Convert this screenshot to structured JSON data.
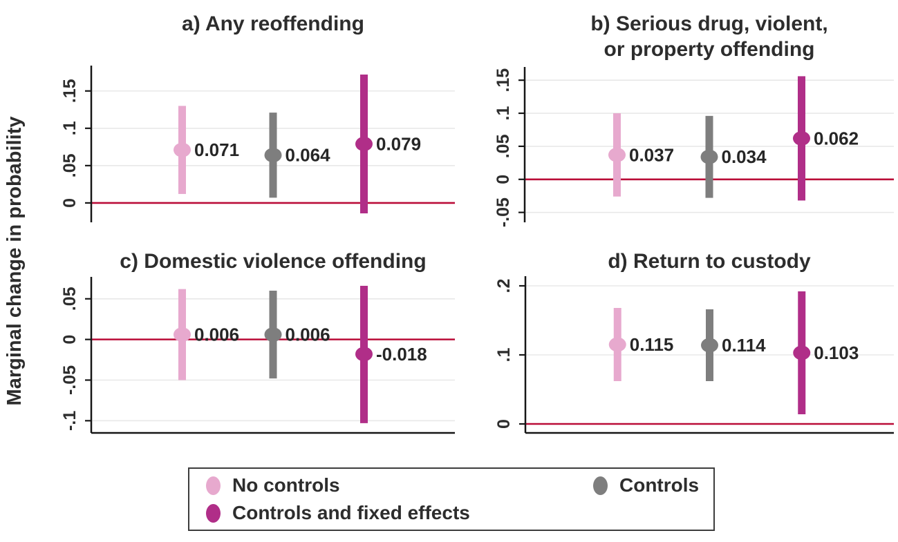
{
  "figure": {
    "ylabel": "Marginal change in probability"
  },
  "colors": {
    "no_controls": "#e7a9ce",
    "controls": "#7e7e7e",
    "controls_fe": "#b02e88",
    "zero_line": "#ba0c38",
    "gridline": "#e8e8e8",
    "axis": "#161616",
    "text": "#2d2d2d"
  },
  "legend": {
    "items": [
      {
        "label": "No controls",
        "color_key": "no_controls"
      },
      {
        "label": "Controls",
        "color_key": "controls"
      },
      {
        "label": "Controls and fixed effects",
        "color_key": "controls_fe"
      }
    ]
  },
  "chart_data": [
    {
      "type": "scatter",
      "panel": "a",
      "title_lines": [
        "a) Any reoffending"
      ],
      "ylabel": "Marginal change in probability",
      "yticks": [
        0,
        0.05,
        0.1,
        0.15
      ],
      "ytick_labels": [
        "0",
        ".05",
        ".1",
        ".15"
      ],
      "ylim": [
        -0.026,
        0.184
      ],
      "zero_line": 0,
      "grid": true,
      "points": [
        {
          "series": "No controls",
          "estimate": 0.071,
          "label": "0.071",
          "ci_low": 0.012,
          "ci_high": 0.13
        },
        {
          "series": "Controls",
          "estimate": 0.064,
          "label": "0.064",
          "ci_low": 0.007,
          "ci_high": 0.121
        },
        {
          "series": "Controls and fixed effects",
          "estimate": 0.079,
          "label": "0.079",
          "ci_low": -0.014,
          "ci_high": 0.172
        }
      ]
    },
    {
      "type": "scatter",
      "panel": "b",
      "title_lines": [
        "b) Serious drug, violent,",
        "or property offending"
      ],
      "ylabel": "Marginal change in probability",
      "yticks": [
        -0.05,
        0,
        0.05,
        0.1,
        0.15
      ],
      "ytick_labels": [
        "-.05",
        "0",
        ".05",
        ".1",
        ".15"
      ],
      "ylim": [
        -0.065,
        0.17
      ],
      "zero_line": 0,
      "grid": true,
      "points": [
        {
          "series": "No controls",
          "estimate": 0.037,
          "label": "0.037",
          "ci_low": -0.026,
          "ci_high": 0.1
        },
        {
          "series": "Controls",
          "estimate": 0.034,
          "label": "0.034",
          "ci_low": -0.028,
          "ci_high": 0.096
        },
        {
          "series": "Controls and fixed effects",
          "estimate": 0.062,
          "label": "0.062",
          "ci_low": -0.032,
          "ci_high": 0.156
        }
      ]
    },
    {
      "type": "scatter",
      "panel": "c",
      "title_lines": [
        "c) Domestic violence offending"
      ],
      "ylabel": "Marginal change in probability",
      "yticks": [
        -0.1,
        -0.05,
        0,
        0.05
      ],
      "ytick_labels": [
        "-.1",
        "-.05",
        "0",
        ".05"
      ],
      "ylim": [
        -0.115,
        0.077
      ],
      "zero_line": 0,
      "grid": true,
      "points": [
        {
          "series": "No controls",
          "estimate": 0.006,
          "label": "0.006",
          "ci_low": -0.05,
          "ci_high": 0.062
        },
        {
          "series": "Controls",
          "estimate": 0.006,
          "label": "0.006",
          "ci_low": -0.048,
          "ci_high": 0.06
        },
        {
          "series": "Controls and fixed effects",
          "estimate": -0.018,
          "label": "-0.018",
          "ci_low": -0.103,
          "ci_high": 0.066
        }
      ]
    },
    {
      "type": "scatter",
      "panel": "d",
      "title_lines": [
        "d) Return to custody"
      ],
      "ylabel": "Marginal change in probability",
      "yticks": [
        0,
        0.1,
        0.2
      ],
      "ytick_labels": [
        "0",
        ".1",
        ".2"
      ],
      "ylim": [
        -0.013,
        0.214
      ],
      "zero_line": 0,
      "grid": true,
      "points": [
        {
          "series": "No controls",
          "estimate": 0.115,
          "label": "0.115",
          "ci_low": 0.062,
          "ci_high": 0.168
        },
        {
          "series": "Controls",
          "estimate": 0.114,
          "label": "0.114",
          "ci_low": 0.062,
          "ci_high": 0.166
        },
        {
          "series": "Controls and fixed effects",
          "estimate": 0.103,
          "label": "0.103",
          "ci_low": 0.014,
          "ci_high": 0.192
        }
      ]
    }
  ]
}
